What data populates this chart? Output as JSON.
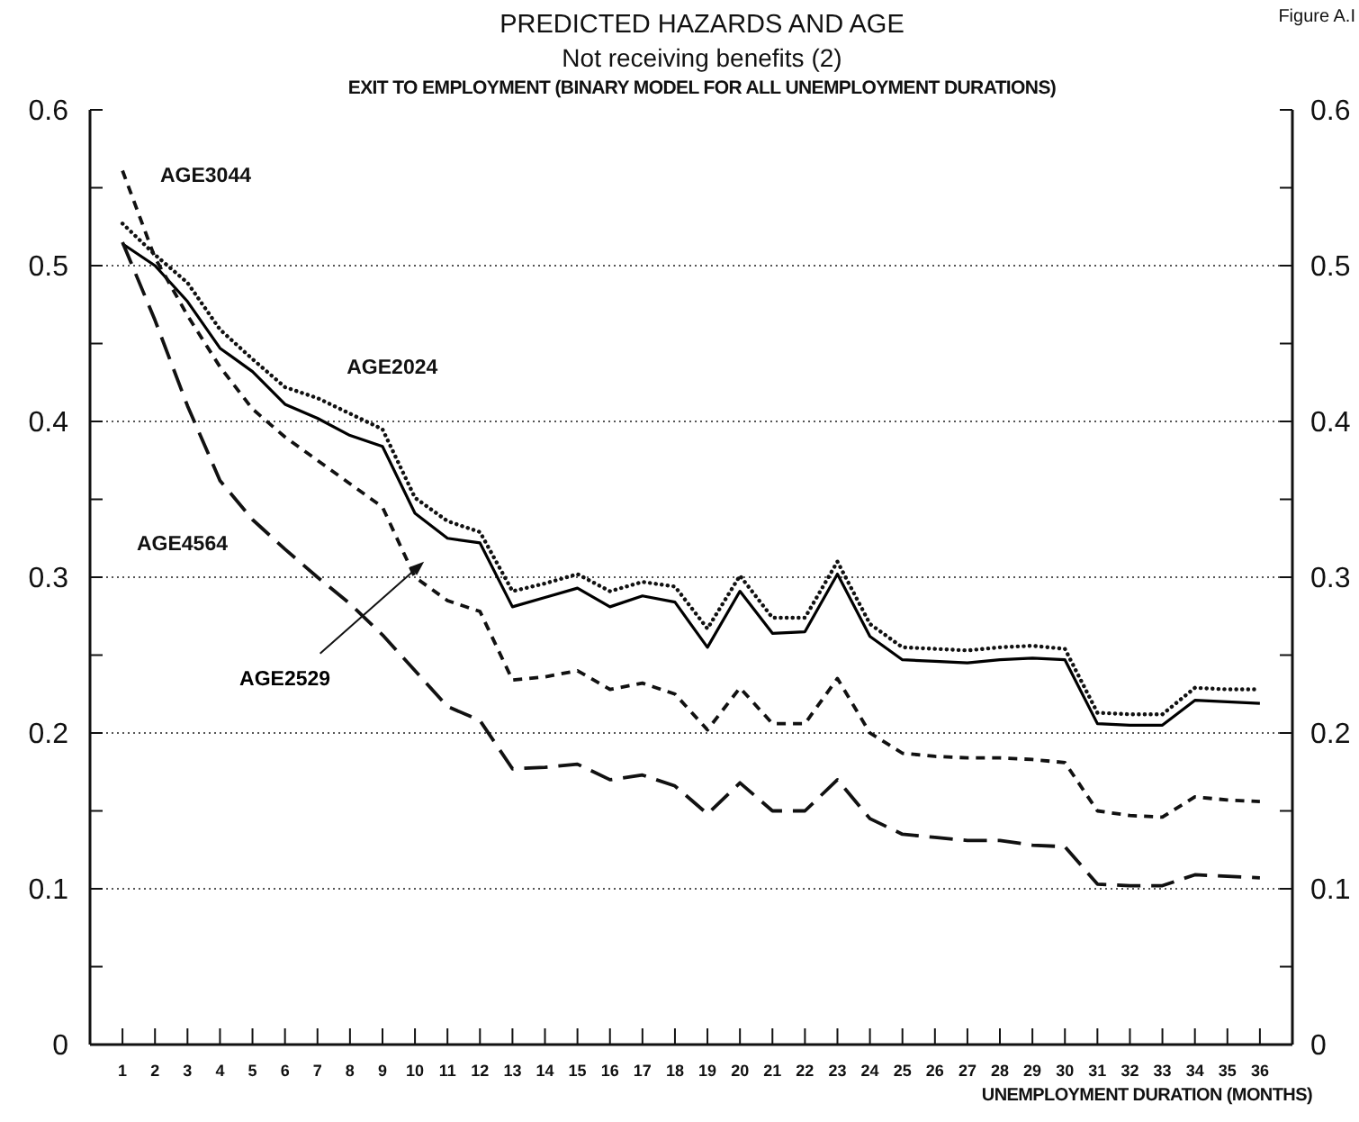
{
  "chart_data": {
    "type": "line",
    "title": "PREDICTED HAZARDS AND AGE",
    "subtitle": "Not receiving benefits (2)",
    "xlabel": "UNEMPLOYMENT DURATION (MONTHS)",
    "annotations": [
      "EXIT TO EMPLOYMENT (BINARY MODEL FOR ALL UNEMPLOYMENT DURATIONS)",
      "Figure A.I"
    ],
    "x": [
      1,
      2,
      3,
      4,
      5,
      6,
      7,
      8,
      9,
      10,
      11,
      12,
      13,
      14,
      15,
      16,
      17,
      18,
      19,
      20,
      21,
      22,
      23,
      24,
      25,
      26,
      27,
      28,
      29,
      30,
      31,
      32,
      33,
      34,
      35,
      36
    ],
    "series": [
      {
        "name": "AGE2024",
        "color": "#111111",
        "line_style": "dotted",
        "values": [
          0.527,
          0.507,
          0.489,
          0.459,
          0.44,
          0.422,
          0.415,
          0.405,
          0.395,
          0.351,
          0.336,
          0.329,
          0.291,
          0.296,
          0.302,
          0.291,
          0.297,
          0.294,
          0.267,
          0.301,
          0.274,
          0.274,
          0.31,
          0.27,
          0.255,
          0.254,
          0.253,
          0.255,
          0.256,
          0.254,
          0.213,
          0.212,
          0.212,
          0.229,
          0.228,
          0.228
        ]
      },
      {
        "name": "AGE2529",
        "color": "#000000",
        "line_style": "solid",
        "values": [
          0.514,
          0.5,
          0.477,
          0.447,
          0.432,
          0.411,
          0.402,
          0.391,
          0.384,
          0.341,
          0.325,
          0.322,
          0.281,
          0.287,
          0.293,
          0.281,
          0.288,
          0.284,
          0.255,
          0.291,
          0.264,
          0.265,
          0.302,
          0.262,
          0.247,
          0.246,
          0.245,
          0.247,
          0.248,
          0.247,
          0.206,
          0.205,
          0.205,
          0.221,
          0.22,
          0.219
        ]
      },
      {
        "name": "AGE3044",
        "color": "#111111",
        "line_style": "dashed",
        "values": [
          0.561,
          0.505,
          0.468,
          0.435,
          0.408,
          0.39,
          0.375,
          0.36,
          0.345,
          0.3,
          0.285,
          0.278,
          0.234,
          0.236,
          0.24,
          0.228,
          0.232,
          0.225,
          0.202,
          0.229,
          0.206,
          0.206,
          0.235,
          0.2,
          0.187,
          0.185,
          0.184,
          0.184,
          0.183,
          0.181,
          0.15,
          0.147,
          0.146,
          0.159,
          0.157,
          0.156
        ]
      },
      {
        "name": "AGE4564",
        "color": "#111111",
        "line_style": "dashed",
        "values": [
          0.515,
          0.465,
          0.41,
          0.362,
          0.337,
          0.318,
          0.3,
          0.283,
          0.263,
          0.24,
          0.217,
          0.208,
          0.177,
          0.178,
          0.18,
          0.17,
          0.173,
          0.166,
          0.148,
          0.168,
          0.15,
          0.15,
          0.17,
          0.145,
          0.135,
          0.133,
          0.131,
          0.131,
          0.128,
          0.127,
          0.103,
          0.102,
          0.102,
          0.109,
          0.108,
          0.107
        ]
      }
    ],
    "xlim": [
      0,
      37
    ],
    "xticks": [
      1,
      2,
      3,
      4,
      5,
      6,
      7,
      8,
      9,
      10,
      11,
      12,
      13,
      14,
      15,
      16,
      17,
      18,
      19,
      20,
      21,
      22,
      23,
      24,
      25,
      26,
      27,
      28,
      29,
      30,
      31,
      32,
      33,
      34,
      35,
      36
    ],
    "ylim": [
      0,
      0.6
    ],
    "yticks": [
      0,
      {
        "value": 0.05,
        "label": null
      },
      0.1,
      {
        "value": 0.15,
        "label": null
      },
      0.2,
      {
        "value": 0.25,
        "label": null
      },
      0.3,
      {
        "value": 0.35,
        "label": null
      },
      0.4,
      {
        "value": 0.45,
        "label": null
      },
      0.5,
      {
        "value": 0.55,
        "label": null
      },
      0.6
    ],
    "y2lim": [
      0,
      0.6
    ],
    "y2ticks": [
      0,
      {
        "value": 0.05,
        "label": null
      },
      0.1,
      {
        "value": 0.15,
        "label": null
      },
      0.2,
      {
        "value": 0.25,
        "label": null
      },
      0.3,
      {
        "value": 0.35,
        "label": null
      },
      0.4,
      {
        "value": 0.45,
        "label": null
      },
      0.5,
      {
        "value": 0.55,
        "label": null
      },
      0.6
    ],
    "grid": "y",
    "marker": "none"
  }
}
